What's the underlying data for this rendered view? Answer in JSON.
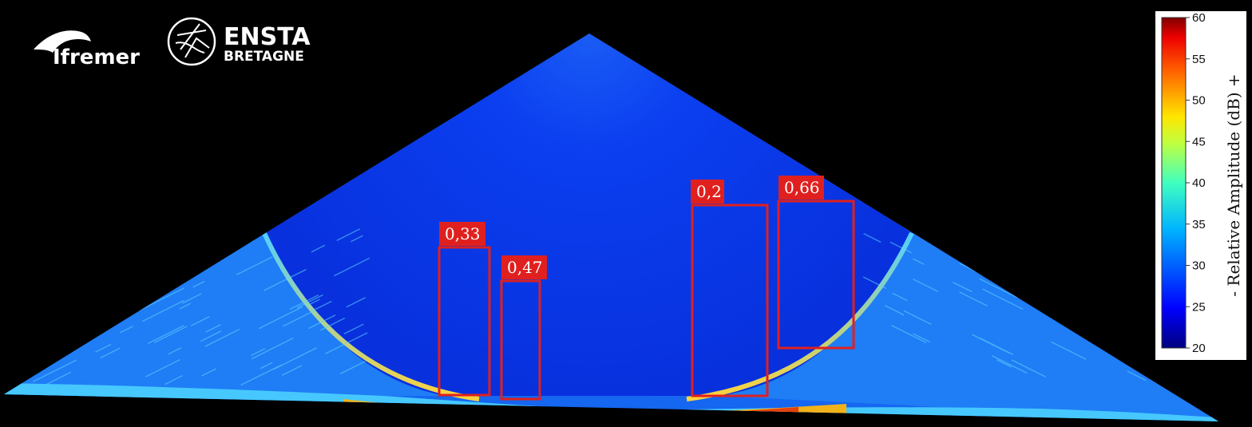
{
  "logos": {
    "ifremer": "Ifremer",
    "ensta_line1": "ENSTA",
    "ensta_line2": "BRETAGNE"
  },
  "colorbar": {
    "title": "- Relative Amplitude (dB) +",
    "ticks": [
      "60",
      "55",
      "50",
      "45",
      "40",
      "35",
      "30",
      "25",
      "20"
    ],
    "colors": [
      "#00007f",
      "#0000ff",
      "#0080ff",
      "#00ffff",
      "#80ff80",
      "#ffff00",
      "#ff8000",
      "#ff0000",
      "#7f0000"
    ]
  },
  "detections": [
    {
      "label": "0,33"
    },
    {
      "label": "0,47"
    },
    {
      "label": "0,2"
    },
    {
      "label": "0,66"
    }
  ],
  "colors": {
    "box": "#e0201e",
    "water": "#0a36e6",
    "seabed": "#1e90ff"
  }
}
